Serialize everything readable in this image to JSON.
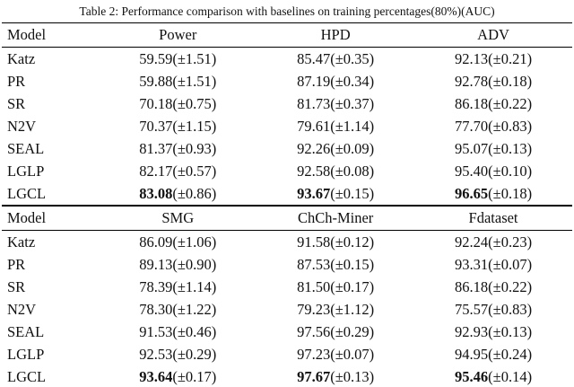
{
  "caption": {
    "label": "Table 2:",
    "text": "Performance comparison with baselines on training percentages(80%)(AUC)"
  },
  "tables": [
    {
      "headers": [
        "Model",
        "Power",
        "HPD",
        "ADV"
      ],
      "rows": [
        {
          "model": "Katz",
          "cells": [
            {
              "v": "59.59",
              "pm": "(±1.51)"
            },
            {
              "v": "85.47",
              "pm": "(±0.35)"
            },
            {
              "v": "92.13",
              "pm": "(±0.21)"
            }
          ]
        },
        {
          "model": "PR",
          "cells": [
            {
              "v": "59.88",
              "pm": "(±1.51)"
            },
            {
              "v": "87.19",
              "pm": "(±0.34)"
            },
            {
              "v": "92.78",
              "pm": "(±0.18)"
            }
          ]
        },
        {
          "model": "SR",
          "cells": [
            {
              "v": "70.18",
              "pm": "(±0.75)"
            },
            {
              "v": "81.73",
              "pm": "(±0.37)"
            },
            {
              "v": "86.18",
              "pm": "(±0.22)"
            }
          ]
        },
        {
          "model": "N2V",
          "cells": [
            {
              "v": "70.37",
              "pm": "(±1.15)"
            },
            {
              "v": "79.61",
              "pm": "(±1.14)"
            },
            {
              "v": "77.70",
              "pm": "(±0.83)"
            }
          ]
        },
        {
          "model": "SEAL",
          "cells": [
            {
              "v": "81.37",
              "pm": "(±0.93)"
            },
            {
              "v": "92.26",
              "pm": "(±0.09)"
            },
            {
              "v": "95.07",
              "pm": "(±0.13)"
            }
          ]
        },
        {
          "model": "LGLP",
          "cells": [
            {
              "v": "82.17",
              "pm": "(±0.57)"
            },
            {
              "v": "92.58",
              "pm": "(±0.08)"
            },
            {
              "v": "95.40",
              "pm": "(±0.10)"
            }
          ]
        },
        {
          "model": "LGCL",
          "bold": true,
          "cells": [
            {
              "v": "83.08",
              "pm": "(±0.86)"
            },
            {
              "v": "93.67",
              "pm": "(±0.15)"
            },
            {
              "v": "96.65",
              "pm": "(±0.18)"
            }
          ]
        }
      ]
    },
    {
      "headers": [
        "Model",
        "SMG",
        "ChCh-Miner",
        "Fdataset"
      ],
      "rows": [
        {
          "model": "Katz",
          "cells": [
            {
              "v": "86.09",
              "pm": "(±1.06)"
            },
            {
              "v": "91.58",
              "pm": "(±0.12)"
            },
            {
              "v": "92.24",
              "pm": "(±0.23)"
            }
          ]
        },
        {
          "model": "PR",
          "cells": [
            {
              "v": "89.13",
              "pm": "(±0.90)"
            },
            {
              "v": "87.53",
              "pm": "(±0.15)"
            },
            {
              "v": "93.31",
              "pm": "(±0.07)"
            }
          ]
        },
        {
          "model": "SR",
          "cells": [
            {
              "v": "78.39",
              "pm": "(±1.14)"
            },
            {
              "v": "81.50",
              "pm": "(±0.17)"
            },
            {
              "v": "86.18",
              "pm": "(±0.22)"
            }
          ]
        },
        {
          "model": "N2V",
          "cells": [
            {
              "v": "78.30",
              "pm": "(±1.22)"
            },
            {
              "v": "79.23",
              "pm": "(±1.12)"
            },
            {
              "v": "75.57",
              "pm": "(±0.83)"
            }
          ]
        },
        {
          "model": "SEAL",
          "cells": [
            {
              "v": "91.53",
              "pm": "(±0.46)"
            },
            {
              "v": "97.56",
              "pm": "(±0.29)"
            },
            {
              "v": "92.93",
              "pm": "(±0.13)"
            }
          ]
        },
        {
          "model": "LGLP",
          "cells": [
            {
              "v": "92.53",
              "pm": "(±0.29)"
            },
            {
              "v": "97.23",
              "pm": "(±0.07)"
            },
            {
              "v": "94.95",
              "pm": "(±0.24)"
            }
          ]
        },
        {
          "model": "LGCL",
          "bold": true,
          "cells": [
            {
              "v": "93.64",
              "pm": "(±0.17)"
            },
            {
              "v": "97.67",
              "pm": "(±0.13)"
            },
            {
              "v": "95.46",
              "pm": "(±0.14)"
            }
          ]
        }
      ]
    }
  ]
}
